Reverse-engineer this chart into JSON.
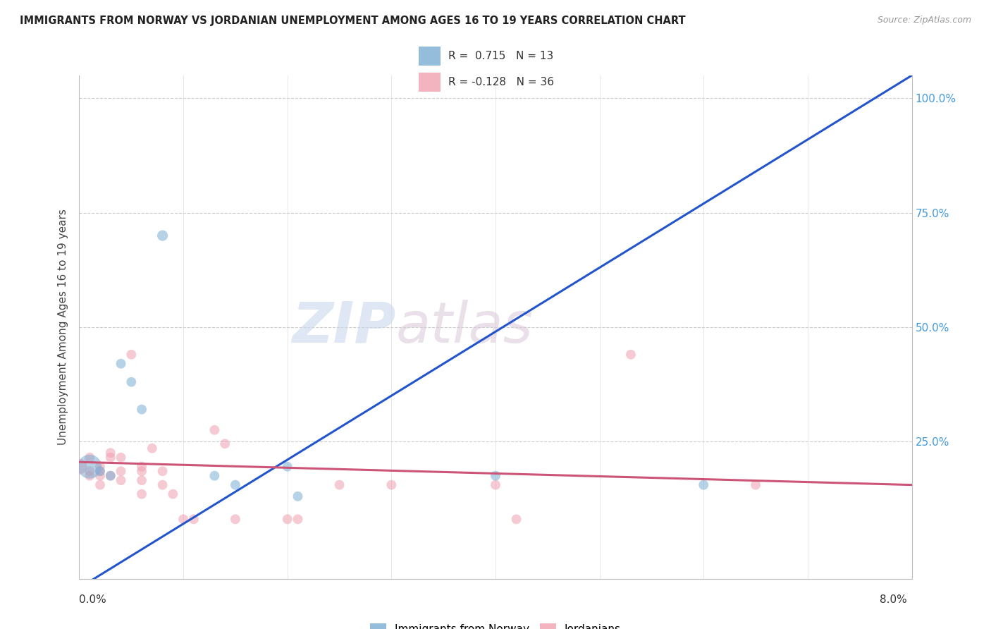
{
  "title": "IMMIGRANTS FROM NORWAY VS JORDANIAN UNEMPLOYMENT AMONG AGES 16 TO 19 YEARS CORRELATION CHART",
  "source": "Source: ZipAtlas.com",
  "ylabel": "Unemployment Among Ages 16 to 19 years",
  "xlim": [
    0.0,
    0.08
  ],
  "ylim": [
    -0.05,
    1.05
  ],
  "legend1_r": "0.715",
  "legend1_n": "13",
  "legend2_r": "-0.128",
  "legend2_n": "36",
  "norway_color": "#7aadd4",
  "jordan_color": "#f0a0b0",
  "norway_line_color": "#2255cc",
  "jordan_line_color": "#cc5577",
  "watermark_zip": "ZIP",
  "watermark_atlas": "atlas",
  "norway_points": [
    [
      0.001,
      0.195,
      600
    ],
    [
      0.002,
      0.185,
      100
    ],
    [
      0.003,
      0.175,
      100
    ],
    [
      0.004,
      0.42,
      100
    ],
    [
      0.005,
      0.38,
      100
    ],
    [
      0.006,
      0.32,
      100
    ],
    [
      0.008,
      0.7,
      120
    ],
    [
      0.013,
      0.175,
      100
    ],
    [
      0.015,
      0.155,
      100
    ],
    [
      0.02,
      0.195,
      100
    ],
    [
      0.021,
      0.13,
      100
    ],
    [
      0.04,
      0.175,
      100
    ],
    [
      0.06,
      0.155,
      100
    ]
  ],
  "jordan_points": [
    [
      0.0,
      0.195,
      250
    ],
    [
      0.001,
      0.185,
      100
    ],
    [
      0.001,
      0.215,
      100
    ],
    [
      0.001,
      0.175,
      100
    ],
    [
      0.002,
      0.195,
      100
    ],
    [
      0.002,
      0.175,
      100
    ],
    [
      0.002,
      0.155,
      100
    ],
    [
      0.002,
      0.185,
      100
    ],
    [
      0.003,
      0.215,
      100
    ],
    [
      0.003,
      0.225,
      100
    ],
    [
      0.003,
      0.175,
      100
    ],
    [
      0.004,
      0.185,
      100
    ],
    [
      0.004,
      0.215,
      100
    ],
    [
      0.004,
      0.165,
      100
    ],
    [
      0.005,
      0.44,
      100
    ],
    [
      0.006,
      0.185,
      100
    ],
    [
      0.006,
      0.195,
      100
    ],
    [
      0.006,
      0.165,
      100
    ],
    [
      0.006,
      0.135,
      100
    ],
    [
      0.007,
      0.235,
      100
    ],
    [
      0.008,
      0.185,
      100
    ],
    [
      0.008,
      0.155,
      100
    ],
    [
      0.009,
      0.135,
      100
    ],
    [
      0.01,
      0.08,
      100
    ],
    [
      0.011,
      0.08,
      100
    ],
    [
      0.013,
      0.275,
      100
    ],
    [
      0.014,
      0.245,
      100
    ],
    [
      0.015,
      0.08,
      100
    ],
    [
      0.02,
      0.08,
      100
    ],
    [
      0.021,
      0.08,
      100
    ],
    [
      0.025,
      0.155,
      100
    ],
    [
      0.03,
      0.155,
      100
    ],
    [
      0.04,
      0.155,
      100
    ],
    [
      0.053,
      0.44,
      100
    ],
    [
      0.065,
      0.155,
      100
    ],
    [
      0.042,
      0.08,
      100
    ]
  ],
  "norway_line_x0": 0.0,
  "norway_line_y0": -0.07,
  "norway_line_x1": 0.08,
  "norway_line_y1": 1.05,
  "jordan_line_x0": 0.0,
  "jordan_line_y0": 0.205,
  "jordan_line_x1": 0.08,
  "jordan_line_y1": 0.155
}
